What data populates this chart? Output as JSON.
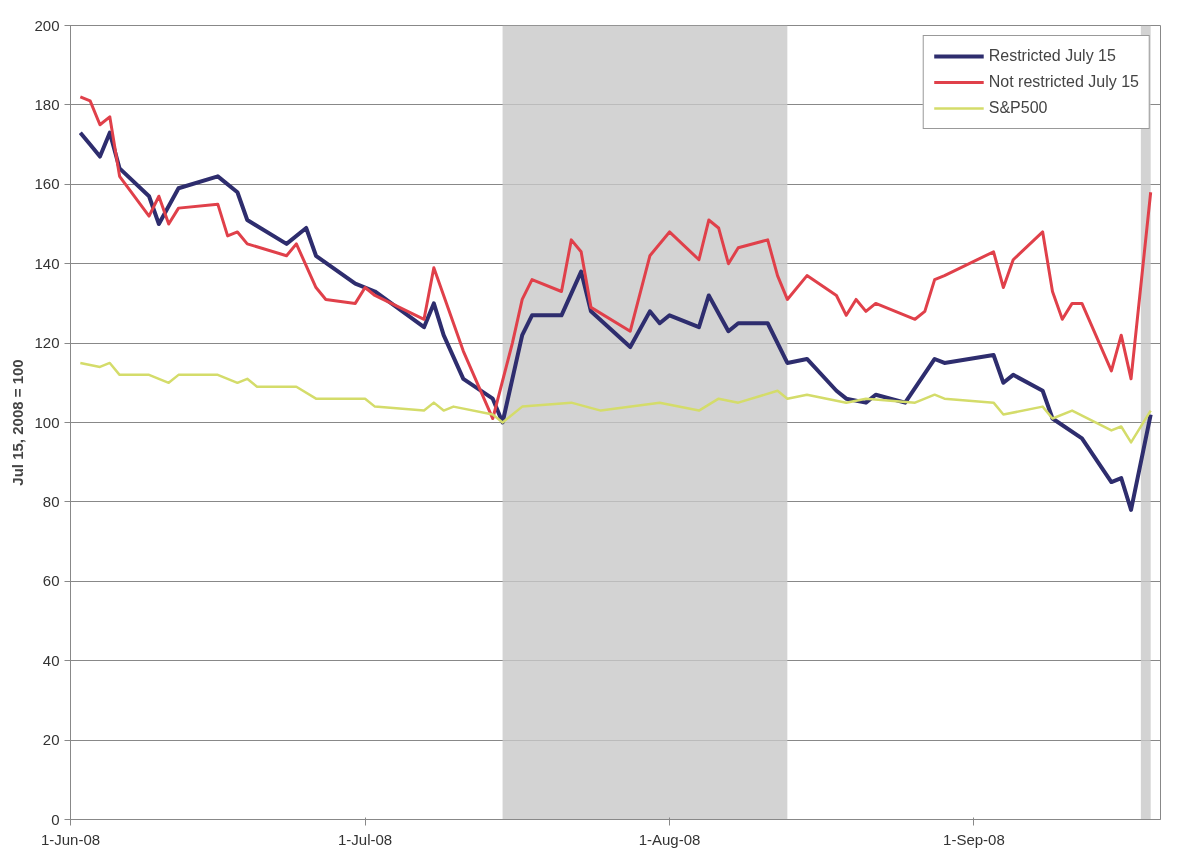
{
  "chart_data": {
    "type": "line",
    "ylabel": "Jul 15, 2008 = 100",
    "xlim": [
      "2008-06-01",
      "2008-09-20"
    ],
    "xticks": [
      {
        "value": "2008-06-01",
        "label": "1-Jun-08"
      },
      {
        "value": "2008-07-01",
        "label": "1-Jul-08"
      },
      {
        "value": "2008-08-01",
        "label": "1-Aug-08"
      },
      {
        "value": "2008-09-01",
        "label": "1-Sep-08"
      }
    ],
    "ylim": [
      0,
      200
    ],
    "yticks": [
      0,
      20,
      40,
      60,
      80,
      100,
      120,
      140,
      160,
      180,
      200
    ],
    "grid": "y",
    "legend": "top right",
    "line_style": "solid",
    "marker": "none",
    "bands": [
      {
        "axis": "x",
        "from": "2008-07-15",
        "to": "2008-08-13",
        "color": "#c8c8c8"
      },
      {
        "axis": "x",
        "from": "2008-09-18",
        "to": "2008-09-19",
        "color": "#c8c8c8"
      }
    ],
    "series": [
      {
        "name": "Restricted July 15",
        "color": "#2e2d6e",
        "x": [
          "2008-06-02",
          "2008-06-03",
          "2008-06-04",
          "2008-06-05",
          "2008-06-06",
          "2008-06-09",
          "2008-06-10",
          "2008-06-12",
          "2008-06-16",
          "2008-06-18",
          "2008-06-19",
          "2008-06-23",
          "2008-06-25",
          "2008-06-26",
          "2008-06-30",
          "2008-07-02",
          "2008-07-07",
          "2008-07-08",
          "2008-07-09",
          "2008-07-11",
          "2008-07-14",
          "2008-07-15",
          "2008-07-17",
          "2008-07-18",
          "2008-07-21",
          "2008-07-23",
          "2008-07-24",
          "2008-07-28",
          "2008-07-30",
          "2008-07-31",
          "2008-08-01",
          "2008-08-04",
          "2008-08-05",
          "2008-08-07",
          "2008-08-08",
          "2008-08-11",
          "2008-08-13",
          "2008-08-15",
          "2008-08-18",
          "2008-08-19",
          "2008-08-21",
          "2008-08-22",
          "2008-08-25",
          "2008-08-28",
          "2008-08-29",
          "2008-09-03",
          "2008-09-04",
          "2008-09-05",
          "2008-09-08",
          "2008-09-09",
          "2008-09-12",
          "2008-09-15",
          "2008-09-16",
          "2008-09-17",
          "2008-09-19"
        ],
        "values": [
          173,
          170,
          167,
          173,
          164,
          157,
          150,
          159,
          162,
          158,
          151,
          145,
          149,
          142,
          135,
          133,
          124,
          130,
          122,
          111,
          106,
          100,
          122,
          127,
          127,
          138,
          128,
          119,
          128,
          125,
          127,
          124,
          132,
          123,
          125,
          125,
          115,
          116,
          108,
          106,
          105,
          107,
          105,
          116,
          115,
          117,
          110,
          112,
          108,
          101,
          96,
          85,
          86,
          78,
          102
        ]
      },
      {
        "name": "Not restricted July 15",
        "color": "#e0404a",
        "x": [
          "2008-06-02",
          "2008-06-03",
          "2008-06-04",
          "2008-06-05",
          "2008-06-06",
          "2008-06-09",
          "2008-06-10",
          "2008-06-11",
          "2008-06-12",
          "2008-06-16",
          "2008-06-17",
          "2008-06-18",
          "2008-06-19",
          "2008-06-23",
          "2008-06-24",
          "2008-06-26",
          "2008-06-27",
          "2008-06-30",
          "2008-07-01",
          "2008-07-02",
          "2008-07-07",
          "2008-07-08",
          "2008-07-11",
          "2008-07-14",
          "2008-07-16",
          "2008-07-17",
          "2008-07-18",
          "2008-07-21",
          "2008-07-22",
          "2008-07-23",
          "2008-07-24",
          "2008-07-28",
          "2008-07-30",
          "2008-08-01",
          "2008-08-04",
          "2008-08-05",
          "2008-08-06",
          "2008-08-07",
          "2008-08-08",
          "2008-08-11",
          "2008-08-12",
          "2008-08-13",
          "2008-08-15",
          "2008-08-18",
          "2008-08-19",
          "2008-08-20",
          "2008-08-21",
          "2008-08-22",
          "2008-08-26",
          "2008-08-27",
          "2008-08-28",
          "2008-08-29",
          "2008-09-03",
          "2008-09-04",
          "2008-09-05",
          "2008-09-08",
          "2008-09-09",
          "2008-09-10",
          "2008-09-11",
          "2008-09-12",
          "2008-09-15",
          "2008-09-16",
          "2008-09-17",
          "2008-09-19"
        ],
        "values": [
          182,
          181,
          175,
          177,
          162,
          152,
          157,
          150,
          154,
          155,
          147,
          148,
          145,
          142,
          145,
          134,
          131,
          130,
          134,
          132,
          126,
          139,
          118,
          101,
          120,
          131,
          136,
          133,
          146,
          143,
          129,
          123,
          142,
          148,
          141,
          151,
          149,
          140,
          144,
          146,
          137,
          131,
          137,
          132,
          127,
          131,
          128,
          130,
          126,
          128,
          136,
          137,
          143,
          134,
          141,
          148,
          133,
          126,
          130,
          130,
          113,
          122,
          111,
          158
        ]
      },
      {
        "name": "S&P500",
        "color": "#d4dc6a",
        "x": [
          "2008-06-02",
          "2008-06-04",
          "2008-06-05",
          "2008-06-06",
          "2008-06-09",
          "2008-06-11",
          "2008-06-12",
          "2008-06-16",
          "2008-06-18",
          "2008-06-19",
          "2008-06-20",
          "2008-06-24",
          "2008-06-26",
          "2008-07-01",
          "2008-07-02",
          "2008-07-07",
          "2008-07-08",
          "2008-07-09",
          "2008-07-10",
          "2008-07-14",
          "2008-07-15",
          "2008-07-17",
          "2008-07-22",
          "2008-07-25",
          "2008-07-31",
          "2008-08-04",
          "2008-08-06",
          "2008-08-08",
          "2008-08-12",
          "2008-08-13",
          "2008-08-15",
          "2008-08-19",
          "2008-08-21",
          "2008-08-26",
          "2008-08-28",
          "2008-08-29",
          "2008-09-03",
          "2008-09-04",
          "2008-09-08",
          "2008-09-09",
          "2008-09-11",
          "2008-09-15",
          "2008-09-16",
          "2008-09-17",
          "2008-09-19"
        ],
        "values": [
          115,
          114,
          115,
          112,
          112,
          110,
          112,
          112,
          110,
          111,
          109,
          109,
          106,
          106,
          104,
          103,
          105,
          103,
          104,
          102,
          100,
          104,
          105,
          103,
          105,
          103,
          106,
          105,
          108,
          106,
          107,
          105,
          106,
          105,
          107,
          106,
          105,
          102,
          104,
          101,
          103,
          98,
          99,
          95,
          103
        ]
      }
    ]
  }
}
